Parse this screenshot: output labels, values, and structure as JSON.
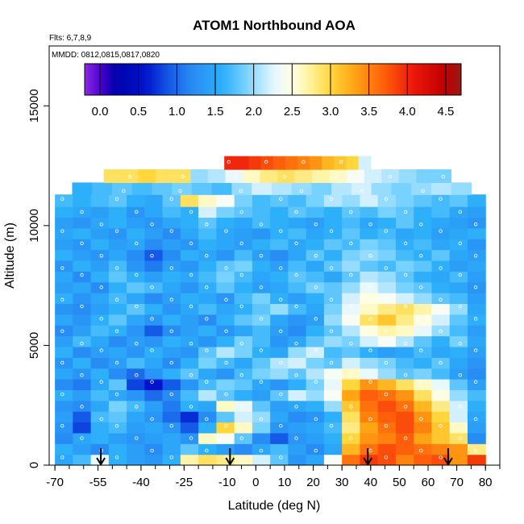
{
  "chart_data": {
    "type": "heatmap",
    "title": "ATOM1 Northbound AOA",
    "subtitle_lines": [
      "Flts: 6,7,8,9",
      "MMDD: 0812,0815,0817,0820"
    ],
    "xlabel": "Latitude (deg N)",
    "ylabel": "Altitude (m)",
    "xlim": [
      -72,
      85
    ],
    "ylim": [
      0,
      17500
    ],
    "x_ticks": [
      -70,
      -55,
      -40,
      -25,
      -10,
      0,
      10,
      20,
      30,
      40,
      50,
      60,
      70,
      80
    ],
    "x_tick_labels": [
      "-70",
      "-55",
      "-40",
      "-25",
      "-10",
      "0",
      "10",
      "20",
      "30",
      "40",
      "50",
      "60",
      "70",
      "80"
    ],
    "x_minor_step": 5,
    "y_ticks": [
      0,
      5000,
      10000,
      15000
    ],
    "y_tick_labels": [
      "0",
      "5000",
      "10000",
      "15000"
    ],
    "colorbar": {
      "range": [
        -0.2,
        4.7
      ],
      "ticks": [
        0.0,
        0.5,
        1.0,
        1.5,
        2.0,
        2.5,
        3.0,
        3.5,
        4.0,
        4.5
      ],
      "tick_labels": [
        "0.0",
        "0.5",
        "1.0",
        "1.5",
        "2.0",
        "2.5",
        "3.0",
        "3.5",
        "4.0",
        "4.5"
      ],
      "placement": "top inside plot"
    },
    "flight_markers_lat": [
      -54,
      -9,
      39,
      67
    ],
    "bands": [
      {
        "alt": [
          0,
          450
        ],
        "lat": [
          -70,
          80
        ],
        "values": [
          1.5,
          1.7,
          2.3,
          1.6,
          1.4,
          1.3,
          1.6,
          2.7,
          2.9,
          2.8,
          2.6,
          2.2,
          1.8,
          1.3,
          1.5,
          2.4,
          3.6,
          3.9,
          3.8,
          3.5,
          3.7,
          3.8,
          3.4,
          3.9
        ]
      },
      {
        "alt": [
          450,
          900
        ],
        "lat": [
          -70,
          80
        ],
        "values": [
          1.6,
          1.4,
          1.2,
          1.6,
          1.4,
          1.2,
          1.5,
          1.8,
          1.6,
          1.4,
          1.2,
          1.5,
          1.7,
          1.4,
          1.2,
          1.5,
          3.2,
          3.6,
          3.8,
          3.7,
          3.6,
          3.5,
          3.4,
          2.8
        ]
      },
      {
        "alt": [
          900,
          1350
        ],
        "lat": [
          -70,
          80
        ],
        "values": [
          1.2,
          1.5,
          1.6,
          1.4,
          1.3,
          1.4,
          1.5,
          1.3,
          2.6,
          2.4,
          1.8,
          1.2,
          0.9,
          1.3,
          1.4,
          1.6,
          3.0,
          3.4,
          3.5,
          3.7,
          3.3,
          3.1,
          2.9,
          1.2
        ]
      },
      {
        "alt": [
          1350,
          1800
        ],
        "lat": [
          -70,
          80
        ],
        "values": [
          1.3,
          0.8,
          1.6,
          1.7,
          1.4,
          1.5,
          1.3,
          0.9,
          1.6,
          3.0,
          2.6,
          1.9,
          1.3,
          1.4,
          1.5,
          1.7,
          2.8,
          3.3,
          3.6,
          3.8,
          3.5,
          3.1,
          2.6,
          1.4
        ]
      },
      {
        "alt": [
          1800,
          2250
        ],
        "lat": [
          -70,
          80
        ],
        "values": [
          1.4,
          0.9,
          1.7,
          1.8,
          1.5,
          1.3,
          1.0,
          0.7,
          1.2,
          1.8,
          2.2,
          2.0,
          1.5,
          1.2,
          1.3,
          1.6,
          2.9,
          3.5,
          3.7,
          3.8,
          3.4,
          3.0,
          2.2,
          1.5
        ]
      },
      {
        "alt": [
          2250,
          2700
        ],
        "lat": [
          -70,
          80
        ],
        "values": [
          1.3,
          1.2,
          1.5,
          1.9,
          1.7,
          1.4,
          1.1,
          1.6,
          1.5,
          2.6,
          2.3,
          1.8,
          1.4,
          1.5,
          1.6,
          2.0,
          3.1,
          3.6,
          3.8,
          3.6,
          3.2,
          2.8,
          2.2,
          1.6
        ]
      },
      {
        "alt": [
          2700,
          3150
        ],
        "lat": [
          -70,
          80
        ],
        "values": [
          1.6,
          1.4,
          1.7,
          1.5,
          1.3,
          1.0,
          1.2,
          1.7,
          2.1,
          1.8,
          1.6,
          1.4,
          1.8,
          2.2,
          2.0,
          2.4,
          3.3,
          3.7,
          3.6,
          3.4,
          2.9,
          2.5,
          2.0,
          1.7
        ]
      },
      {
        "alt": [
          3150,
          3600
        ],
        "lat": [
          -70,
          80
        ],
        "values": [
          1.2,
          1.1,
          1.5,
          1.8,
          0.8,
          0.6,
          0.9,
          1.3,
          1.7,
          1.9,
          1.8,
          1.5,
          1.3,
          1.6,
          1.9,
          2.3,
          3.0,
          3.4,
          3.2,
          2.9,
          2.6,
          2.3,
          1.8,
          1.4
        ]
      },
      {
        "alt": [
          3600,
          4050
        ],
        "lat": [
          -70,
          80
        ],
        "values": [
          1.5,
          1.3,
          1.6,
          1.2,
          1.0,
          1.3,
          1.6,
          1.8,
          1.5,
          1.3,
          1.7,
          1.9,
          2.0,
          1.8,
          2.1,
          2.4,
          2.6,
          2.3,
          2.0,
          1.8,
          1.9,
          1.7,
          1.4,
          1.2
        ]
      },
      {
        "alt": [
          4050,
          4500
        ],
        "lat": [
          -70,
          80
        ],
        "values": [
          1.3,
          1.6,
          1.2,
          1.4,
          1.7,
          1.5,
          1.2,
          1.6,
          1.9,
          1.7,
          1.5,
          1.8,
          2.1,
          2.2,
          1.9,
          1.8,
          2.2,
          2.0,
          1.9,
          1.7,
          1.6,
          1.8,
          1.5,
          1.3
        ]
      },
      {
        "alt": [
          4500,
          4950
        ],
        "lat": [
          -70,
          80
        ],
        "values": [
          1.6,
          1.2,
          1.4,
          1.5,
          1.3,
          1.6,
          1.4,
          1.3,
          1.8,
          2.1,
          1.9,
          1.6,
          1.5,
          2.0,
          2.2,
          1.7,
          1.8,
          1.6,
          1.4,
          1.5,
          1.7,
          1.5,
          1.6,
          1.4
        ]
      },
      {
        "alt": [
          4950,
          5400
        ],
        "lat": [
          -70,
          80
        ],
        "values": [
          1.4,
          1.7,
          1.5,
          1.2,
          1.4,
          1.3,
          1.6,
          1.5,
          1.3,
          1.6,
          1.9,
          1.7,
          1.3,
          1.5,
          1.8,
          2.0,
          1.9,
          2.2,
          2.4,
          2.1,
          1.8,
          1.6,
          1.9,
          1.5
        ]
      },
      {
        "alt": [
          5400,
          5850
        ],
        "lat": [
          -70,
          80
        ],
        "values": [
          1.2,
          1.4,
          1.7,
          1.6,
          1.3,
          0.9,
          1.2,
          1.4,
          1.6,
          1.3,
          1.5,
          1.7,
          1.4,
          1.2,
          1.6,
          1.8,
          2.1,
          2.5,
          2.7,
          2.6,
          2.3,
          2.0,
          1.7,
          1.4
        ]
      },
      {
        "alt": [
          5850,
          6300
        ],
        "lat": [
          -70,
          80
        ],
        "values": [
          1.5,
          1.3,
          1.6,
          1.8,
          1.5,
          1.3,
          1.6,
          1.4,
          1.2,
          1.6,
          1.8,
          1.9,
          1.5,
          1.3,
          1.4,
          2.0,
          2.4,
          2.9,
          3.1,
          2.8,
          2.5,
          2.2,
          1.8,
          1.6
        ]
      },
      {
        "alt": [
          6300,
          6750
        ],
        "lat": [
          -70,
          80
        ],
        "values": [
          1.3,
          1.2,
          1.4,
          1.6,
          1.8,
          1.6,
          1.3,
          1.5,
          1.7,
          1.5,
          1.6,
          1.8,
          2.0,
          1.7,
          1.5,
          1.9,
          2.3,
          2.6,
          2.8,
          2.9,
          2.7,
          2.4,
          2.0,
          1.5
        ]
      },
      {
        "alt": [
          6750,
          7200
        ],
        "lat": [
          -70,
          80
        ],
        "values": [
          1.6,
          1.3,
          1.5,
          1.7,
          1.5,
          1.2,
          1.4,
          1.6,
          1.5,
          1.3,
          1.7,
          1.9,
          1.6,
          1.4,
          1.6,
          1.8,
          2.2,
          2.5,
          2.4,
          2.2,
          2.0,
          1.8,
          1.7,
          1.4
        ]
      },
      {
        "alt": [
          7200,
          7650
        ],
        "lat": [
          -70,
          80
        ],
        "values": [
          1.4,
          1.5,
          1.2,
          1.6,
          1.8,
          1.7,
          1.5,
          1.3,
          1.6,
          1.8,
          1.6,
          1.4,
          1.5,
          1.7,
          1.9,
          1.8,
          2.0,
          2.3,
          2.1,
          1.9,
          1.8,
          1.6,
          1.5,
          1.3
        ]
      },
      {
        "alt": [
          7650,
          8100
        ],
        "lat": [
          -70,
          80
        ],
        "values": [
          1.5,
          1.2,
          1.6,
          1.8,
          1.6,
          1.4,
          1.6,
          1.5,
          1.7,
          1.9,
          1.7,
          1.5,
          1.6,
          1.8,
          1.7,
          1.5,
          1.8,
          2.1,
          2.0,
          1.8,
          1.6,
          1.5,
          1.7,
          1.4
        ]
      },
      {
        "alt": [
          8100,
          8550
        ],
        "lat": [
          -70,
          80
        ],
        "values": [
          1.3,
          1.6,
          1.4,
          1.7,
          1.3,
          1.1,
          1.4,
          1.3,
          1.6,
          1.8,
          1.9,
          1.6,
          1.4,
          1.7,
          1.5,
          1.8,
          2.0,
          1.8,
          1.7,
          1.9,
          1.8,
          1.6,
          1.4,
          1.5
        ]
      },
      {
        "alt": [
          8550,
          9000
        ],
        "lat": [
          -70,
          80
        ],
        "values": [
          1.6,
          1.4,
          1.3,
          1.5,
          1.2,
          0.9,
          1.2,
          1.6,
          1.5,
          1.3,
          1.7,
          1.4,
          1.2,
          1.5,
          1.8,
          1.6,
          1.9,
          2.0,
          1.9,
          1.7,
          1.6,
          1.8,
          1.5,
          1.4
        ]
      },
      {
        "alt": [
          9000,
          9450
        ],
        "lat": [
          -70,
          80
        ],
        "values": [
          1.4,
          1.3,
          1.6,
          1.4,
          1.5,
          1.2,
          1.4,
          1.3,
          1.6,
          1.5,
          1.4,
          1.6,
          1.7,
          1.5,
          1.6,
          1.8,
          1.7,
          1.9,
          1.8,
          1.6,
          1.7,
          1.5,
          1.6,
          1.3
        ]
      },
      {
        "alt": [
          9450,
          9900
        ],
        "lat": [
          -70,
          80
        ],
        "values": [
          1.5,
          1.6,
          1.4,
          1.3,
          1.6,
          1.4,
          1.2,
          1.5,
          1.7,
          1.5,
          1.4,
          1.3,
          1.6,
          1.7,
          1.5,
          1.6,
          1.8,
          1.6,
          1.7,
          1.5,
          1.6,
          1.4,
          1.5,
          1.6
        ]
      },
      {
        "alt": [
          9900,
          10350
        ],
        "lat": [
          -70,
          80
        ],
        "values": [
          1.4,
          1.3,
          1.5,
          1.6,
          1.4,
          1.3,
          1.5,
          1.6,
          1.8,
          1.6,
          1.5,
          1.7,
          1.6,
          1.5,
          1.4,
          1.6,
          1.7,
          1.5,
          1.6,
          1.8,
          1.6,
          1.5,
          1.4,
          1.3
        ]
      },
      {
        "alt": [
          10350,
          10800
        ],
        "lat": [
          -70,
          80
        ],
        "values": [
          1.6,
          1.5,
          1.4,
          1.6,
          1.3,
          1.5,
          1.7,
          1.6,
          2.2,
          1.9,
          1.8,
          1.7,
          1.6,
          1.8,
          1.7,
          1.6,
          1.8,
          1.7,
          1.9,
          1.8,
          1.6,
          1.7,
          1.5,
          1.4
        ]
      },
      {
        "alt": [
          10800,
          11300
        ],
        "lat": [
          -70,
          80
        ],
        "values": [
          1.7,
          1.6,
          1.7,
          1.8,
          1.6,
          1.5,
          1.8,
          2.9,
          2.6,
          2.4,
          1.9,
          1.7,
          1.8,
          1.7,
          1.9,
          2.1,
          2.0,
          2.2,
          2.0,
          1.9,
          1.8,
          1.7,
          1.8,
          1.6
        ]
      },
      {
        "alt": [
          11300,
          11800
        ],
        "lat": [
          -64,
          75
        ],
        "values": [
          1.6,
          1.7,
          1.8,
          1.7,
          1.8,
          1.9,
          1.8,
          1.7,
          2.0,
          2.2,
          2.1,
          2.0,
          1.9,
          2.1,
          2.2,
          2.0,
          1.9,
          2.0,
          2.1,
          2.0
        ]
      },
      {
        "alt": [
          11800,
          12350
        ],
        "lat": [
          -53,
          68
        ],
        "values": [
          2.9,
          2.9,
          3.0,
          2.9,
          2.9,
          2.0,
          2.1,
          2.3,
          2.6,
          2.8,
          2.9,
          2.8,
          2.7,
          2.6,
          2.4,
          2.2,
          2.1,
          2.0,
          1.9,
          1.9
        ]
      },
      {
        "alt": [
          12350,
          12900
        ],
        "lat": [
          -11,
          40
        ],
        "values": [
          4.0,
          4.0,
          3.9,
          3.8,
          3.7,
          3.6,
          3.5,
          3.4,
          3.2,
          3.1,
          3.0,
          2.2
        ]
      }
    ],
    "samples_note": "circle markers along flight track"
  }
}
